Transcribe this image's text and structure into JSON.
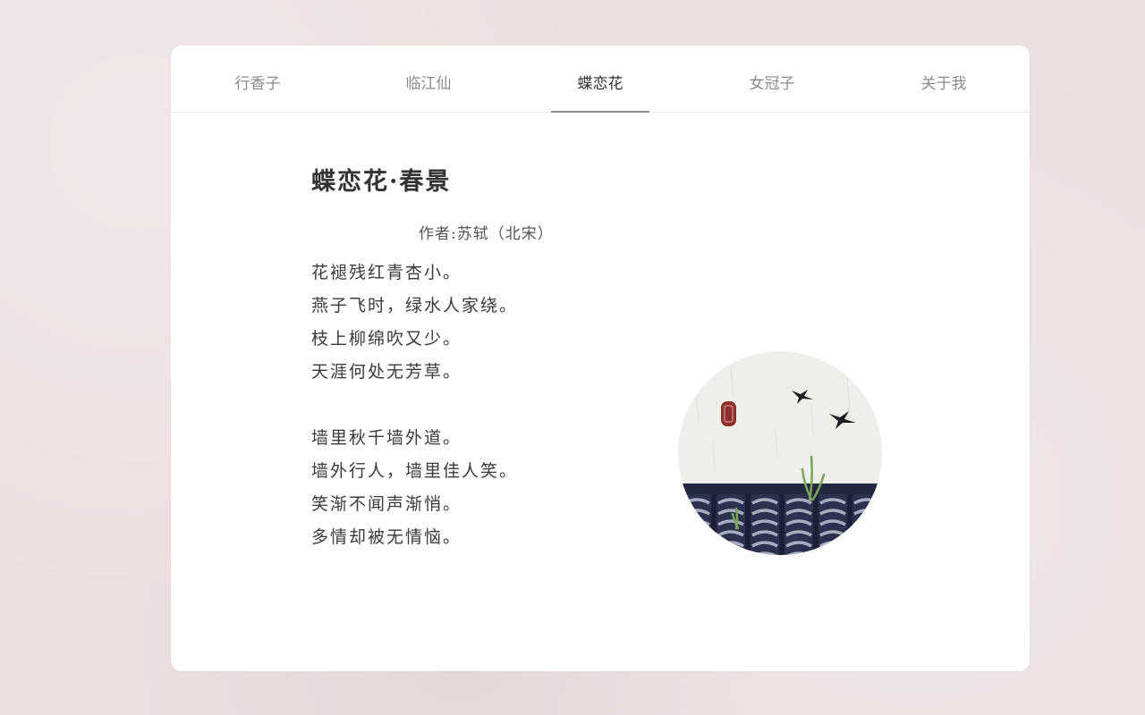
{
  "nav": {
    "tabs": [
      {
        "label": "行香子"
      },
      {
        "label": "临江仙"
      },
      {
        "label": "蝶恋花"
      },
      {
        "label": "女冠子"
      },
      {
        "label": "关于我"
      }
    ],
    "active_index": 2
  },
  "poem": {
    "title": "蝶恋花·春景",
    "author": "作者:苏轼（北宋）",
    "stanza1": [
      "花褪残红青杏小。",
      "燕子飞时，绿水人家绕。",
      "枝上柳绵吹又少。",
      "天涯何处无芳草。"
    ],
    "stanza2": [
      "墙里秋千墙外道。",
      "墙外行人，墙里佳人笑。",
      "笑渐不闻声渐悄。",
      "多情却被无情恼。"
    ]
  },
  "illustration": {
    "icon": "swallows-roof-tiles-illustration",
    "colors": {
      "paper": "#efeeea",
      "tile_dark": "#2c3150",
      "tile_light": "#a9acc0",
      "grass": "#7aa65a",
      "seal": "#8e2f2b",
      "bird": "#1e1e22"
    }
  },
  "colors": {
    "background": "#ecdfe0",
    "card": "#ffffff",
    "tab_active_text": "#333333",
    "tab_inactive_text": "#8a8a8a",
    "tab_underline": "#8c8c8c"
  }
}
